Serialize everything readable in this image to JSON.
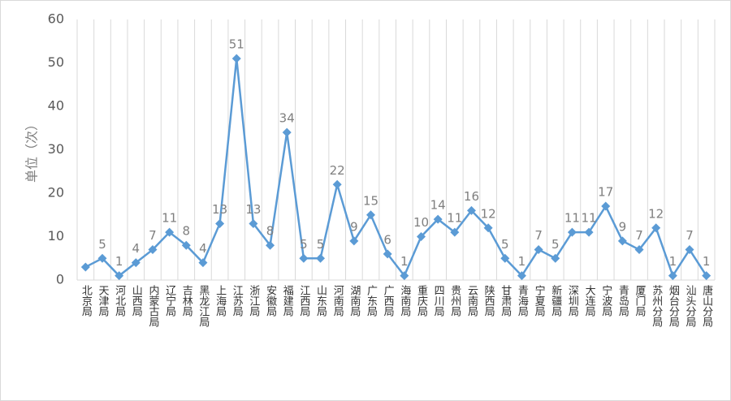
{
  "chart_data": {
    "type": "line",
    "y_label": "单位（次）",
    "categories": [
      "北京局",
      "天津局",
      "河北局",
      "山西局",
      "内蒙古局",
      "辽宁局",
      "吉林局",
      "黑龙江局",
      "上海局",
      "江苏局",
      "浙江局",
      "安徽局",
      "福建局",
      "江西局",
      "山东局",
      "河南局",
      "湖南局",
      "广东局",
      "广西局",
      "海南局",
      "重庆局",
      "四川局",
      "贵州局",
      "云南局",
      "陕西局",
      "甘肃局",
      "青海局",
      "宁夏局",
      "新疆局",
      "深圳局",
      "大连局",
      "宁波局",
      "青岛局",
      "厦门局",
      "苏州分局",
      "烟台分局",
      "汕头分局",
      "唐山分局"
    ],
    "series": [
      {
        "name": "单位",
        "color": "#5b9bd5",
        "values": [
          3,
          5,
          1,
          4,
          7,
          11,
          8,
          4,
          13,
          51,
          13,
          8,
          34,
          5,
          5,
          22,
          9,
          15,
          6,
          1,
          10,
          14,
          11,
          16,
          12,
          5,
          1,
          7,
          5,
          11,
          11,
          17,
          9,
          7,
          12,
          1,
          7,
          1
        ],
        "value_labels": [
          null,
          "5",
          "1",
          "4",
          "7",
          "11",
          "8",
          "4",
          "13",
          "51",
          "13",
          "8",
          "34",
          "5",
          "5",
          "22",
          "9",
          "15",
          "6",
          "1",
          "10",
          "14",
          "11",
          "16",
          "12",
          "5",
          "1",
          "7",
          "5",
          "11",
          "11",
          "17",
          "9",
          "7",
          "12",
          "1",
          "7",
          "1"
        ]
      }
    ],
    "ylim": [
      0,
      60
    ],
    "yticks": [
      0,
      10,
      20,
      30,
      40,
      50,
      60
    ],
    "grid": true
  }
}
